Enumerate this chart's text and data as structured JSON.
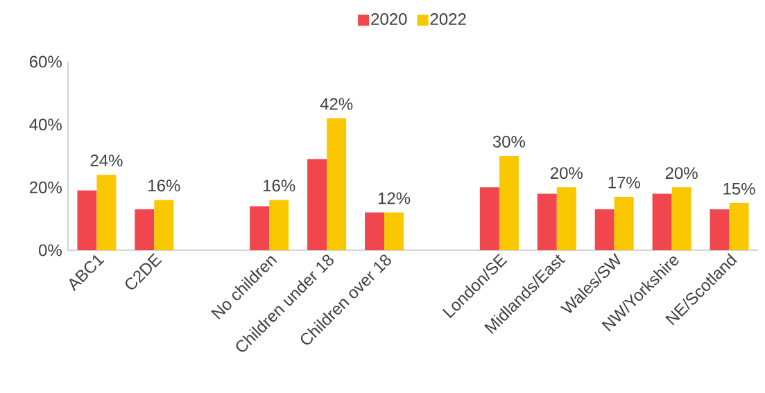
{
  "chart_data": {
    "type": "bar",
    "categories": [
      "ABC1",
      "C2DE",
      null,
      "No children",
      "Children under 18",
      "Children over 18",
      null,
      "London/SE",
      "Midlands/East",
      "Wales/SW",
      "NW/Yorkshire",
      "NE/Scotland"
    ],
    "series": [
      {
        "name": "2020",
        "color": "#f2464f",
        "values": [
          19,
          13,
          null,
          14,
          29,
          12,
          null,
          20,
          18,
          13,
          18,
          13
        ]
      },
      {
        "name": "2022",
        "color": "#fac800",
        "values": [
          24,
          16,
          null,
          16,
          42,
          12,
          null,
          30,
          20,
          17,
          20,
          15
        ],
        "value_labels": [
          "24%",
          "16%",
          null,
          "16%",
          "42%",
          "12%",
          null,
          "30%",
          "20%",
          "17%",
          "20%",
          "15%"
        ]
      }
    ],
    "ylim": [
      0,
      60
    ],
    "yticks": [
      {
        "value": 0,
        "label": "0%"
      },
      {
        "value": 20,
        "label": "20%"
      },
      {
        "value": 40,
        "label": "40%"
      },
      {
        "value": 60,
        "label": "60%"
      }
    ],
    "grid": false,
    "legend": "top"
  }
}
